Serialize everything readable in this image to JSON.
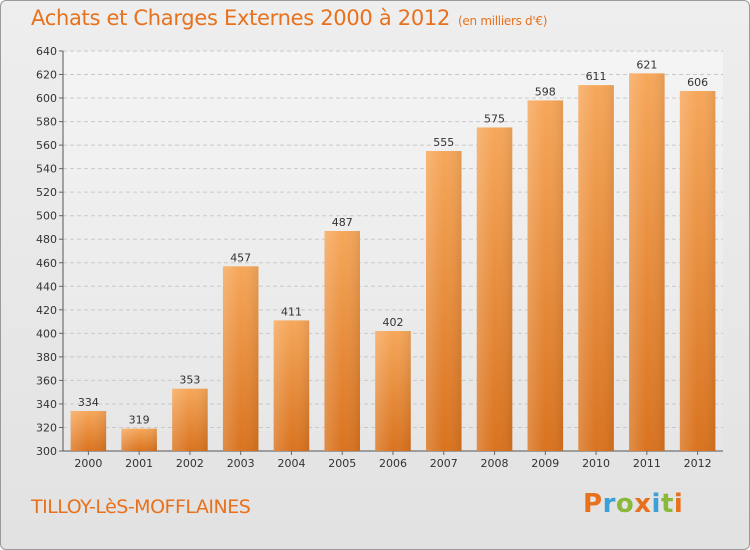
{
  "title": "Achats et Charges Externes 2000 à 2012",
  "subtitle": "(en milliers d'€)",
  "commune": "TILLOY-LèS-MOFFLAINES",
  "brand": {
    "letters": [
      "P",
      "r",
      "o",
      "x",
      "i",
      "t",
      "i"
    ],
    "colors": [
      "#e8711d",
      "#3aa0d8",
      "#8ab83a",
      "#e8711d",
      "#3aa0d8",
      "#8ab83a",
      "#e8711d"
    ]
  },
  "colors": {
    "accent": "#e8711d",
    "bar_light": "#f6a75a",
    "bar_dark": "#d9731f"
  },
  "chart_data": {
    "type": "bar",
    "categories": [
      "2000",
      "2001",
      "2002",
      "2003",
      "2004",
      "2005",
      "2006",
      "2007",
      "2008",
      "2009",
      "2010",
      "2011",
      "2012"
    ],
    "values": [
      334,
      319,
      353,
      457,
      411,
      487,
      402,
      555,
      575,
      598,
      611,
      621,
      606
    ],
    "ylim": [
      300,
      640
    ],
    "yticks": [
      300,
      320,
      340,
      360,
      380,
      400,
      420,
      440,
      460,
      480,
      500,
      520,
      540,
      560,
      580,
      600,
      620,
      640
    ],
    "grid": true,
    "xlabel": "",
    "ylabel": ""
  }
}
